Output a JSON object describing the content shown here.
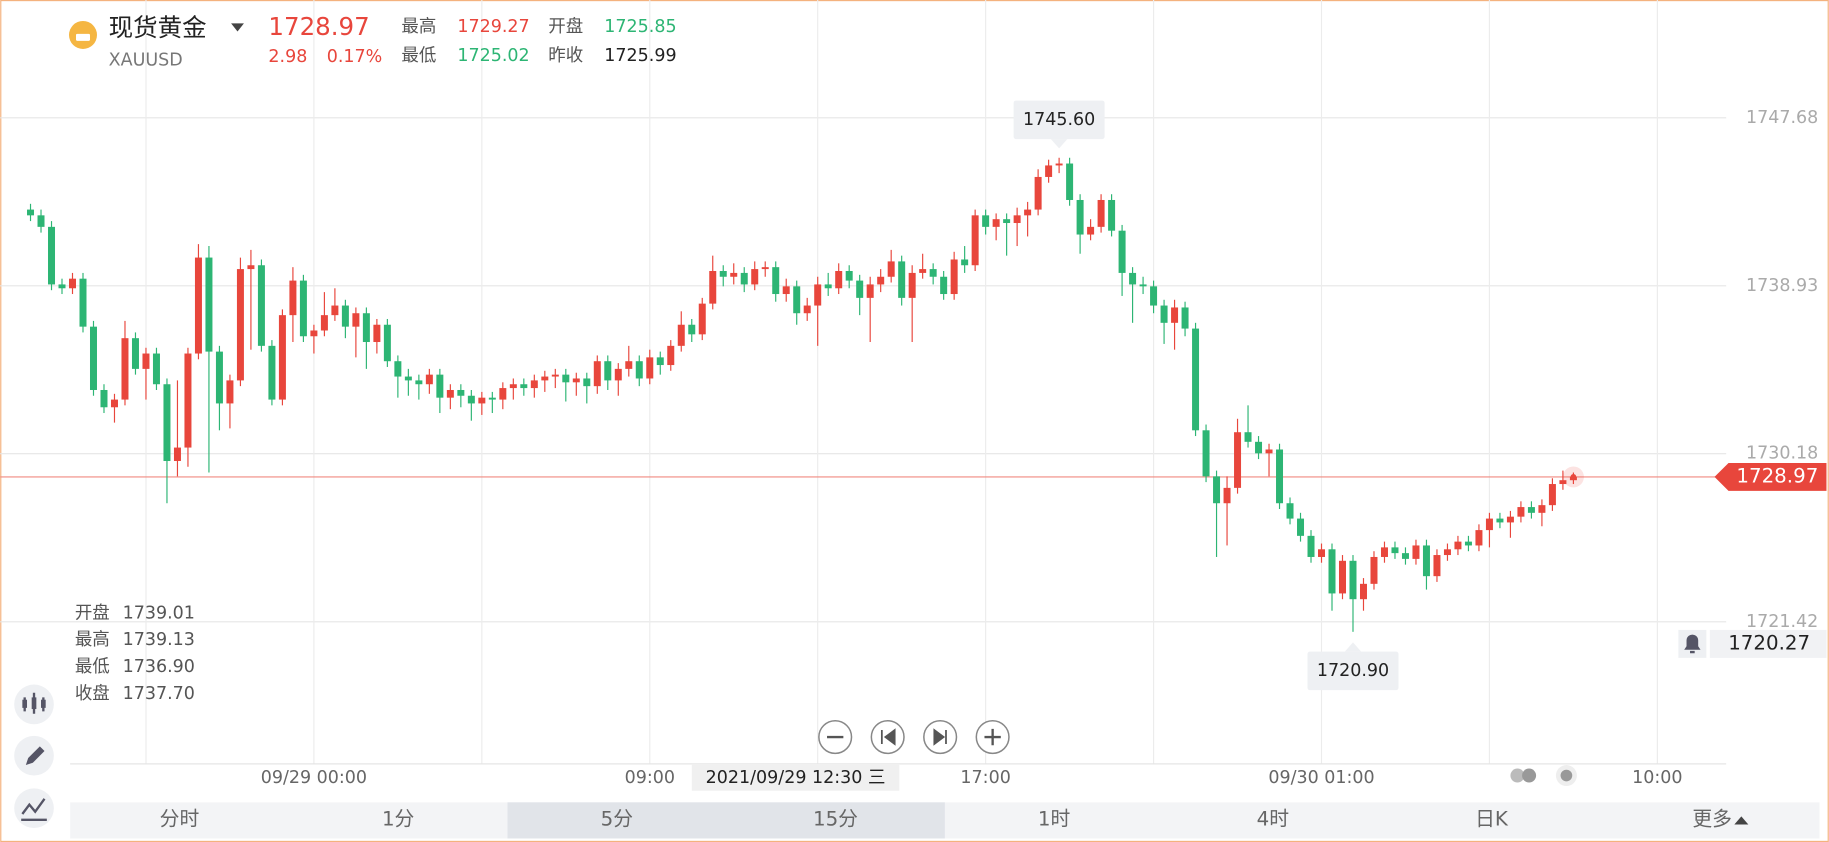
{
  "header": {
    "name": "现货黄金",
    "symbol": "XAUUSD",
    "price": "1728.97",
    "change": "2.98",
    "change_pct": "0.17%",
    "stats": [
      {
        "label": "最高",
        "value": "1729.27"
      },
      {
        "label": "开盘",
        "value": "1725.85"
      },
      {
        "label": "最低",
        "value": "1725.02"
      },
      {
        "label": "昨收",
        "value": "1725.99"
      }
    ]
  },
  "hover": {
    "time": "2021/09/29 12:30 三",
    "items": [
      {
        "label": "开盘",
        "value": "1739.01"
      },
      {
        "label": "最高",
        "value": "1739.13"
      },
      {
        "label": "最低",
        "value": "1736.90"
      },
      {
        "label": "收盘",
        "value": "1737.70"
      }
    ]
  },
  "tabs": [
    "分时",
    "1分",
    "5分",
    "15分",
    "1时",
    "4时",
    "日K",
    "更多"
  ],
  "chart_data": {
    "type": "candlestick",
    "up_color": "#e8463c",
    "down_color": "#2db574",
    "grid": true,
    "ylim": [
      1714.02,
      1753.82
    ],
    "yticks": [
      1721.42,
      1730.18,
      1738.93,
      1747.68
    ],
    "last_price": 1728.97,
    "alert_price": 1720.27,
    "annotations": [
      {
        "value": 1745.6,
        "label": "1745.60"
      },
      {
        "value": 1720.9,
        "label": "1720.90"
      }
    ],
    "categories": [
      null,
      null,
      null,
      null,
      null,
      null,
      null,
      null,
      null,
      null,
      null,
      null,
      null,
      null,
      null,
      null,
      null,
      null,
      null,
      null,
      null,
      null,
      null,
      null,
      null,
      null,
      null,
      "09/29 00:00",
      null,
      null,
      null,
      null,
      null,
      null,
      null,
      null,
      null,
      null,
      null,
      null,
      null,
      null,
      null,
      null,
      null,
      null,
      null,
      null,
      null,
      null,
      null,
      null,
      null,
      null,
      null,
      null,
      null,
      null,
      null,
      "09:00",
      null,
      null,
      null,
      null,
      null,
      null,
      null,
      null,
      null,
      null,
      null,
      null,
      null,
      null,
      null,
      null,
      null,
      null,
      null,
      null,
      null,
      null,
      null,
      null,
      null,
      null,
      null,
      null,
      null,
      null,
      null,
      "17:00",
      null,
      null,
      null,
      null,
      null,
      null,
      null,
      null,
      null,
      null,
      null,
      null,
      null,
      null,
      null,
      null,
      null,
      null,
      null,
      null,
      null,
      null,
      null,
      null,
      null,
      null,
      null,
      null,
      null,
      null,
      null,
      "09/30 01:00",
      null,
      null,
      null,
      null,
      null,
      null,
      null,
      null,
      null,
      null,
      null,
      null,
      null,
      null,
      null,
      null,
      null,
      null,
      null,
      null,
      null,
      null,
      null,
      null,
      null,
      null,
      null,
      null,
      null,
      null,
      null,
      "10:00"
    ],
    "ohlc": [
      [
        1742.9,
        1743.2,
        1742.3,
        1742.6
      ],
      [
        1742.6,
        1742.9,
        1741.7,
        1742.0
      ],
      [
        1742.0,
        1742.3,
        1738.7,
        1739.0
      ],
      [
        1739.0,
        1739.3,
        1738.5,
        1738.8
      ],
      [
        1738.8,
        1739.6,
        1738.5,
        1739.3
      ],
      [
        1739.3,
        1739.6,
        1736.5,
        1736.8
      ],
      [
        1736.8,
        1737.1,
        1733.2,
        1733.5
      ],
      [
        1733.5,
        1733.8,
        1732.3,
        1732.6
      ],
      [
        1732.6,
        1733.3,
        1731.8,
        1733.0
      ],
      [
        1733.0,
        1737.1,
        1732.7,
        1736.2
      ],
      [
        1736.2,
        1736.5,
        1734.3,
        1734.6
      ],
      [
        1734.6,
        1735.7,
        1733.0,
        1735.4
      ],
      [
        1735.4,
        1735.7,
        1733.5,
        1733.8
      ],
      [
        1733.8,
        1734.1,
        1727.6,
        1729.8
      ],
      [
        1729.8,
        1734.0,
        1729.0,
        1730.5
      ],
      [
        1730.5,
        1735.7,
        1729.5,
        1735.4
      ],
      [
        1735.4,
        1741.1,
        1735.1,
        1740.4
      ],
      [
        1740.4,
        1741.0,
        1729.2,
        1735.5
      ],
      [
        1735.5,
        1735.8,
        1731.4,
        1732.8
      ],
      [
        1732.8,
        1734.3,
        1731.5,
        1734.0
      ],
      [
        1734.0,
        1740.4,
        1733.7,
        1739.8
      ],
      [
        1739.8,
        1740.8,
        1735.6,
        1740.0
      ],
      [
        1740.0,
        1740.3,
        1735.5,
        1735.8
      ],
      [
        1735.8,
        1736.1,
        1732.7,
        1733.0
      ],
      [
        1733.0,
        1737.7,
        1732.7,
        1737.4
      ],
      [
        1737.4,
        1739.9,
        1736.0,
        1739.2
      ],
      [
        1739.2,
        1739.5,
        1736.0,
        1736.3
      ],
      [
        1736.3,
        1736.9,
        1735.4,
        1736.6
      ],
      [
        1736.6,
        1738.6,
        1736.3,
        1737.4
      ],
      [
        1737.4,
        1738.8,
        1737.1,
        1737.9
      ],
      [
        1737.9,
        1738.2,
        1736.2,
        1736.8
      ],
      [
        1736.8,
        1737.8,
        1735.2,
        1737.5
      ],
      [
        1737.5,
        1737.8,
        1734.6,
        1736.0
      ],
      [
        1736.0,
        1737.2,
        1735.4,
        1736.9
      ],
      [
        1736.9,
        1737.2,
        1734.7,
        1735.0
      ],
      [
        1735.0,
        1735.3,
        1733.1,
        1734.2
      ],
      [
        1734.2,
        1734.6,
        1733.2,
        1734.0
      ],
      [
        1734.0,
        1734.3,
        1733.0,
        1733.8
      ],
      [
        1733.8,
        1734.6,
        1733.3,
        1734.3
      ],
      [
        1734.3,
        1734.6,
        1732.3,
        1733.1
      ],
      [
        1733.1,
        1733.8,
        1732.5,
        1733.5
      ],
      [
        1733.5,
        1733.8,
        1732.6,
        1733.2
      ],
      [
        1733.2,
        1733.5,
        1731.9,
        1732.8
      ],
      [
        1732.8,
        1733.4,
        1732.2,
        1733.1
      ],
      [
        1733.1,
        1733.4,
        1732.3,
        1733.0
      ],
      [
        1733.0,
        1733.9,
        1732.5,
        1733.6
      ],
      [
        1733.6,
        1734.1,
        1733.0,
        1733.8
      ],
      [
        1733.8,
        1734.1,
        1733.2,
        1733.6
      ],
      [
        1733.6,
        1734.3,
        1733.1,
        1734.0
      ],
      [
        1734.0,
        1734.5,
        1733.4,
        1734.2
      ],
      [
        1734.2,
        1734.6,
        1733.6,
        1734.3
      ],
      [
        1734.3,
        1734.6,
        1732.9,
        1733.9
      ],
      [
        1733.9,
        1734.4,
        1733.2,
        1734.1
      ],
      [
        1734.1,
        1734.4,
        1732.8,
        1733.7
      ],
      [
        1733.7,
        1735.3,
        1733.3,
        1735.0
      ],
      [
        1735.0,
        1735.3,
        1733.5,
        1734.0
      ],
      [
        1734.0,
        1734.9,
        1733.2,
        1734.6
      ],
      [
        1734.6,
        1735.8,
        1734.2,
        1735.0
      ],
      [
        1735.0,
        1735.3,
        1733.7,
        1734.1
      ],
      [
        1734.1,
        1735.6,
        1733.8,
        1735.2
      ],
      [
        1735.2,
        1735.5,
        1734.3,
        1734.8
      ],
      [
        1734.8,
        1736.1,
        1734.5,
        1735.8
      ],
      [
        1735.8,
        1737.6,
        1735.5,
        1736.9
      ],
      [
        1736.9,
        1737.2,
        1736.0,
        1736.4
      ],
      [
        1736.4,
        1738.3,
        1736.1,
        1738.0
      ],
      [
        1738.0,
        1740.5,
        1737.7,
        1739.7
      ],
      [
        1739.7,
        1740.0,
        1738.9,
        1739.4
      ],
      [
        1739.4,
        1740.1,
        1739.0,
        1739.6
      ],
      [
        1739.6,
        1739.9,
        1738.6,
        1739.0
      ],
      [
        1739.0,
        1740.2,
        1738.7,
        1739.8
      ],
      [
        1739.8,
        1740.2,
        1739.4,
        1739.9
      ],
      [
        1739.9,
        1740.2,
        1738.1,
        1738.5
      ],
      [
        1738.5,
        1739.3,
        1738.1,
        1738.9
      ],
      [
        1738.9,
        1739.2,
        1736.9,
        1737.5
      ],
      [
        1737.5,
        1738.3,
        1737.1,
        1737.9
      ],
      [
        1737.9,
        1739.4,
        1735.8,
        1739.0
      ],
      [
        1739.0,
        1739.6,
        1738.4,
        1738.8
      ],
      [
        1738.8,
        1740.1,
        1738.5,
        1739.7
      ],
      [
        1739.7,
        1740.0,
        1738.8,
        1739.2
      ],
      [
        1739.2,
        1739.5,
        1737.4,
        1738.3
      ],
      [
        1738.3,
        1739.4,
        1736.0,
        1739.0
      ],
      [
        1739.0,
        1739.8,
        1738.6,
        1739.4
      ],
      [
        1739.4,
        1740.8,
        1739.1,
        1740.2
      ],
      [
        1740.2,
        1740.5,
        1737.9,
        1738.3
      ],
      [
        1738.3,
        1740.0,
        1736.0,
        1739.6
      ],
      [
        1739.6,
        1740.6,
        1739.3,
        1739.8
      ],
      [
        1739.8,
        1740.1,
        1739.0,
        1739.4
      ],
      [
        1739.4,
        1739.7,
        1738.2,
        1738.5
      ],
      [
        1738.5,
        1740.7,
        1738.2,
        1740.3
      ],
      [
        1740.3,
        1741.0,
        1739.6,
        1740.0
      ],
      [
        1740.0,
        1742.9,
        1739.7,
        1742.6
      ],
      [
        1742.6,
        1742.9,
        1741.6,
        1742.0
      ],
      [
        1742.0,
        1742.7,
        1741.3,
        1742.4
      ],
      [
        1742.4,
        1742.7,
        1740.5,
        1742.2
      ],
      [
        1742.2,
        1743.0,
        1741.0,
        1742.6
      ],
      [
        1742.6,
        1743.3,
        1741.5,
        1742.9
      ],
      [
        1742.9,
        1745.0,
        1742.6,
        1744.6
      ],
      [
        1744.6,
        1745.5,
        1744.3,
        1745.2
      ],
      [
        1745.2,
        1745.6,
        1744.8,
        1745.3
      ],
      [
        1745.3,
        1745.6,
        1743.1,
        1743.4
      ],
      [
        1743.4,
        1743.7,
        1740.6,
        1741.6
      ],
      [
        1741.6,
        1742.4,
        1741.3,
        1742.0
      ],
      [
        1742.0,
        1743.7,
        1741.7,
        1743.4
      ],
      [
        1743.4,
        1743.7,
        1741.5,
        1741.8
      ],
      [
        1741.8,
        1742.1,
        1738.4,
        1739.6
      ],
      [
        1739.6,
        1739.9,
        1737.0,
        1739.0
      ],
      [
        1739.0,
        1739.4,
        1738.5,
        1738.9
      ],
      [
        1738.9,
        1739.2,
        1737.5,
        1737.9
      ],
      [
        1737.9,
        1738.2,
        1735.9,
        1737.0
      ],
      [
        1737.0,
        1738.2,
        1735.6,
        1737.8
      ],
      [
        1737.8,
        1738.1,
        1736.3,
        1736.7
      ],
      [
        1736.7,
        1737.0,
        1731.1,
        1731.4
      ],
      [
        1731.4,
        1731.7,
        1728.7,
        1729.0
      ],
      [
        1729.0,
        1729.3,
        1724.8,
        1727.6
      ],
      [
        1727.6,
        1729.0,
        1725.4,
        1728.4
      ],
      [
        1728.4,
        1732.0,
        1728.1,
        1731.3
      ],
      [
        1731.3,
        1732.7,
        1730.5,
        1730.8
      ],
      [
        1730.8,
        1731.1,
        1729.9,
        1730.2
      ],
      [
        1730.2,
        1730.7,
        1729.0,
        1730.4
      ],
      [
        1730.4,
        1730.7,
        1727.3,
        1727.6
      ],
      [
        1727.6,
        1727.9,
        1726.5,
        1726.8
      ],
      [
        1726.8,
        1727.1,
        1725.6,
        1725.9
      ],
      [
        1725.9,
        1726.2,
        1724.5,
        1724.8
      ],
      [
        1724.8,
        1725.5,
        1724.5,
        1725.2
      ],
      [
        1725.2,
        1725.5,
        1722.0,
        1722.9
      ],
      [
        1722.9,
        1724.9,
        1722.6,
        1724.6
      ],
      [
        1724.6,
        1724.9,
        1720.9,
        1722.6
      ],
      [
        1722.6,
        1723.7,
        1722.0,
        1723.4
      ],
      [
        1723.4,
        1725.1,
        1723.1,
        1724.8
      ],
      [
        1724.8,
        1725.6,
        1724.5,
        1725.3
      ],
      [
        1725.3,
        1725.6,
        1724.7,
        1725.0
      ],
      [
        1725.0,
        1725.3,
        1724.4,
        1724.7
      ],
      [
        1724.7,
        1725.7,
        1724.4,
        1725.4
      ],
      [
        1725.4,
        1725.7,
        1723.1,
        1723.8
      ],
      [
        1723.8,
        1725.2,
        1723.5,
        1724.9
      ],
      [
        1724.9,
        1725.5,
        1724.6,
        1725.2
      ],
      [
        1725.2,
        1725.9,
        1724.9,
        1725.6
      ],
      [
        1725.6,
        1725.9,
        1725.1,
        1725.4
      ],
      [
        1725.4,
        1726.5,
        1725.1,
        1726.2
      ],
      [
        1726.2,
        1727.1,
        1725.3,
        1726.8
      ],
      [
        1726.8,
        1727.1,
        1726.3,
        1726.6
      ],
      [
        1726.6,
        1727.2,
        1725.8,
        1726.9
      ],
      [
        1726.9,
        1727.7,
        1726.6,
        1727.4
      ],
      [
        1727.4,
        1727.7,
        1726.8,
        1727.1
      ],
      [
        1727.1,
        1727.8,
        1726.4,
        1727.5
      ],
      [
        1727.5,
        1728.9,
        1727.2,
        1728.6
      ],
      [
        1728.6,
        1729.3,
        1728.3,
        1728.8
      ],
      [
        1728.8,
        1729.2,
        1728.6,
        1728.97
      ],
      null,
      null,
      null,
      null,
      null,
      null,
      null,
      null
    ]
  }
}
